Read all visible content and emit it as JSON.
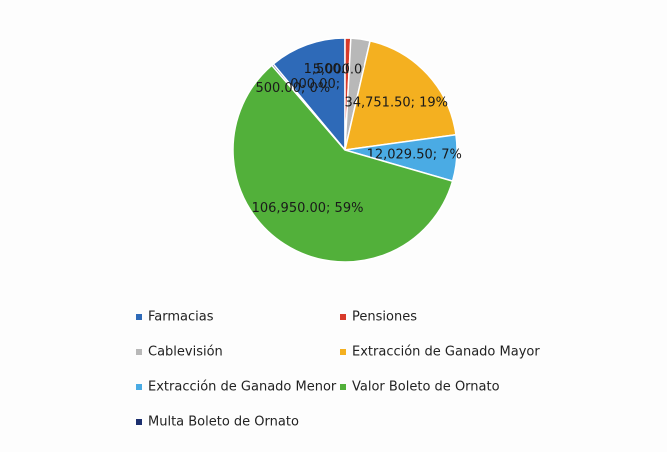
{
  "chart_data": {
    "type": "pie",
    "categories": [
      "Farmacias",
      "Pensiones",
      "Cablevisión",
      "Extracción de Ganado Mayor",
      "Extracción de Ganado Menor",
      "Valor Boleto de Ornato",
      "Multa Boleto de Ornato"
    ],
    "values": [
      20000,
      1500,
      5000,
      34751.5,
      12029.5,
      106950,
      500
    ],
    "value_labels": [
      "20,000.00; 11%",
      "1,500.00; 1%",
      "5,000.00; 3%",
      "34,751.50; 19%",
      "12,029.50; 7%",
      "106,950.00; 59%",
      "500.00; 0%"
    ],
    "colors": [
      "#2e6ab8",
      "#d83a2a",
      "#b8b8b8",
      "#f4b020",
      "#4aabe4",
      "#52b03a",
      "#1c2f6e"
    ]
  }
}
